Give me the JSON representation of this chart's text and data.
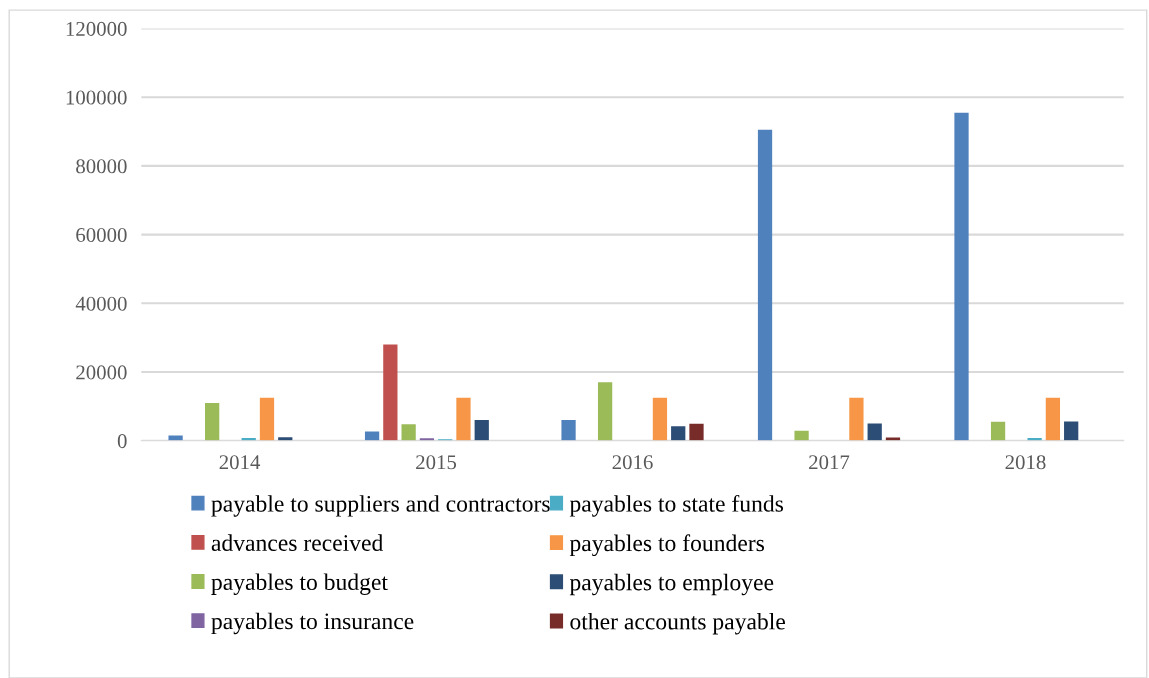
{
  "chart_data": {
    "type": "bar",
    "categories": [
      "2014",
      "2015",
      "2016",
      "2017",
      "2018"
    ],
    "series": [
      {
        "name": "payable to suppliers and contractors",
        "color": "#4f81bd",
        "values": [
          1500,
          2700,
          6000,
          90500,
          95500
        ]
      },
      {
        "name": "advances received",
        "color": "#c0504d",
        "values": [
          null,
          28000,
          null,
          null,
          null
        ]
      },
      {
        "name": "payables to budget",
        "color": "#9bbb59",
        "values": [
          11000,
          4800,
          17000,
          2900,
          5500
        ]
      },
      {
        "name": "payables to insurance",
        "color": "#8064a2",
        "values": [
          null,
          700,
          null,
          null,
          null
        ]
      },
      {
        "name": "payables to state funds",
        "color": "#4bacc6",
        "values": [
          800,
          400,
          null,
          null,
          800
        ]
      },
      {
        "name": "payables to founders",
        "color": "#f79646",
        "values": [
          12500,
          12500,
          12500,
          12500,
          12500
        ]
      },
      {
        "name": "payables to employee",
        "color": "#2c4d75",
        "values": [
          1000,
          6000,
          4200,
          5000,
          5600
        ]
      },
      {
        "name": "other accounts payable",
        "color": "#772c2a",
        "values": [
          null,
          null,
          4900,
          900,
          null
        ]
      }
    ],
    "ylim": [
      0,
      120000
    ],
    "yticks": [
      0,
      20000,
      40000,
      60000,
      80000,
      100000,
      120000
    ],
    "grid": "y",
    "legend": "bottom"
  }
}
